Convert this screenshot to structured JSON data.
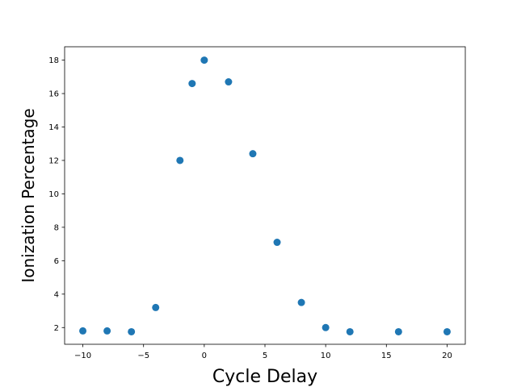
{
  "chart_data": {
    "type": "scatter",
    "title": "",
    "xlabel": "Cycle Delay",
    "ylabel": "Ionization Percentage",
    "xlim": [
      -11.5,
      21.5
    ],
    "ylim": [
      1.0,
      18.8
    ],
    "xticks": [
      -10,
      -5,
      0,
      5,
      10,
      15,
      20
    ],
    "xtick_labels": [
      "−10",
      "−5",
      "0",
      "5",
      "10",
      "15",
      "20"
    ],
    "yticks": [
      2,
      4,
      6,
      8,
      10,
      12,
      14,
      16,
      18
    ],
    "ytick_labels": [
      "2",
      "4",
      "6",
      "8",
      "10",
      "12",
      "14",
      "16",
      "18"
    ],
    "grid": false,
    "legend": "none",
    "marker_color": "#1f77b4",
    "x": [
      -10,
      -8,
      -6,
      -4,
      -2,
      -1,
      0,
      2,
      4,
      6,
      8,
      10,
      12,
      16,
      20
    ],
    "y": [
      1.8,
      1.8,
      1.75,
      3.2,
      12.0,
      16.6,
      18.0,
      16.7,
      12.4,
      7.1,
      3.5,
      2.0,
      1.75,
      1.75,
      1.75
    ]
  }
}
